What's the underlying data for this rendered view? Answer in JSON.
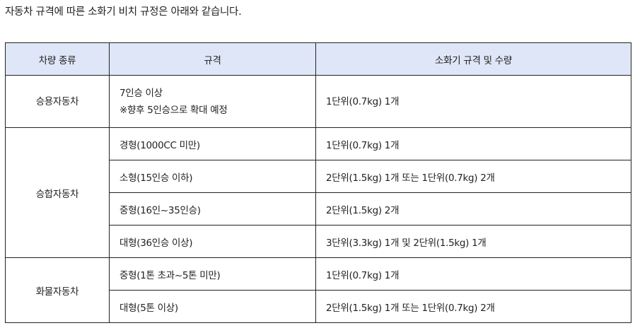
{
  "intro": "자동차 규격에 따른 소화기 비치 규정은 아래와 같습니다.",
  "table": {
    "headers": [
      "차량 종류",
      "규격",
      "소화기 규격 및 수량"
    ],
    "groups": [
      {
        "type": "승용자동차",
        "rows": [
          {
            "spec": "7인승 이상",
            "spec_note": "※향후 5인승으로 확대 예정",
            "extinguisher": "1단위(0.7kg) 1개"
          }
        ]
      },
      {
        "type": "승합자동차",
        "rows": [
          {
            "spec": "경형(1000CC 미만)",
            "extinguisher": "1단위(0.7kg) 1개"
          },
          {
            "spec": "소형(15인승 이하)",
            "extinguisher": "2단위(1.5kg) 1개 또는 1단위(0.7kg) 2개"
          },
          {
            "spec": "중형(16인~35인승)",
            "extinguisher": "2단위(1.5kg) 2개"
          },
          {
            "spec": "대형(36인승 이상)",
            "extinguisher": "3단위(3.3kg) 1개 및 2단위(1.5kg) 1개"
          }
        ]
      },
      {
        "type": "화물자동차",
        "rows": [
          {
            "spec": "중형(1톤 초과~5톤 미만)",
            "extinguisher": "1단위(0.7kg) 1개"
          },
          {
            "spec": "대형(5톤 이상)",
            "extinguisher": "2단위(1.5kg) 1개 또는 1단위(0.7kg) 2개"
          }
        ]
      }
    ]
  },
  "colors": {
    "header_bg": "#dfe6f7",
    "border": "#222222"
  }
}
